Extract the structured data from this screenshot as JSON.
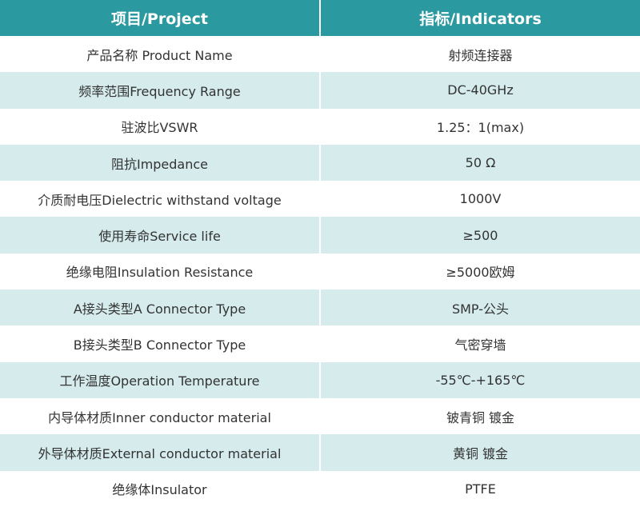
{
  "table": {
    "header": [
      "项目/Project",
      "指标/Indicators"
    ],
    "rows": [
      [
        "产品名称 Product Name",
        "射频连接器"
      ],
      [
        "频率范围Frequency Range",
        "DC-40GHz"
      ],
      [
        "驻波比VSWR",
        "1.25：1(max)"
      ],
      [
        "阻抗Impedance",
        "50 Ω"
      ],
      [
        "介质耐电压Dielectric withstand voltage",
        "1000V"
      ],
      [
        "使用寿命Service life",
        "≥500"
      ],
      [
        "绝缘电阻Insulation Resistance",
        "≥5000欧姆"
      ],
      [
        "A接头类型A Connector Type",
        "SMP-公头"
      ],
      [
        "B接头类型B Connector Type",
        "气密穿墙"
      ],
      [
        "工作温度Operation Temperature",
        "-55℃-+165℃"
      ],
      [
        "内导体材质Inner conductor material",
        "铍青铜 镀金"
      ],
      [
        "外导体材质External conductor material",
        "黄铜 镀金"
      ],
      [
        "绝缘体Insulator",
        "PTFE"
      ]
    ]
  }
}
